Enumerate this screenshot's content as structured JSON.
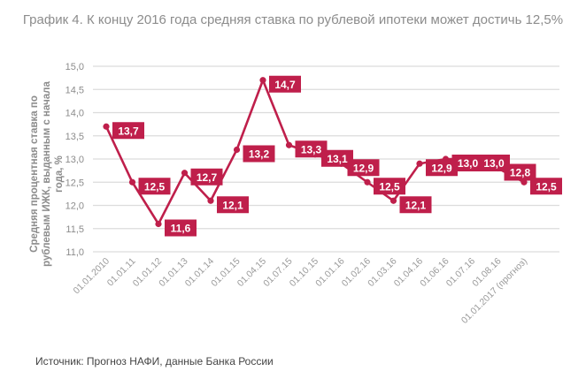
{
  "chart_data": {
    "type": "line",
    "title": "График 4.  К концу 2016 года средняя ставка по рублевой ипотеки может достичь 12,5%",
    "ylabel": "Средняя процентная ставка по рублевым ИЖК, выданным с начала года, %",
    "xlabel": "",
    "ylim": [
      11.0,
      15.0
    ],
    "yticks": [
      "11,0",
      "11,5",
      "12,0",
      "12,5",
      "13,0",
      "13,5",
      "14,0",
      "14,5",
      "15,0"
    ],
    "categories": [
      "01.01.2010",
      "01.01.11",
      "01.01.12",
      "01.01.13",
      "01.01.14",
      "01.01.15",
      "01.04.15",
      "01.07.15",
      "01.10.15",
      "01.01.16",
      "01.02.16",
      "01.03.16",
      "01.04.16",
      "01.06.16",
      "01.07.16",
      "01.08.16",
      "01.01.2017 (прогноз)"
    ],
    "values": [
      13.7,
      12.5,
      11.6,
      12.7,
      12.1,
      13.2,
      14.7,
      13.3,
      13.1,
      12.9,
      12.5,
      12.1,
      12.9,
      13.0,
      13.0,
      12.8,
      12.5
    ],
    "labels": [
      "13,7",
      "12,5",
      "11,6",
      "12,7",
      "12,1",
      "13,2",
      "14,7",
      "13,3",
      "13,1",
      "12,9",
      "12,5",
      "12,1",
      "12,9",
      "13,0",
      "13,0",
      "12,8",
      "12,5"
    ],
    "grid": true,
    "color": "#bf1f4b"
  },
  "source": "Источник: Прогноз НАФИ, данные Банка России"
}
